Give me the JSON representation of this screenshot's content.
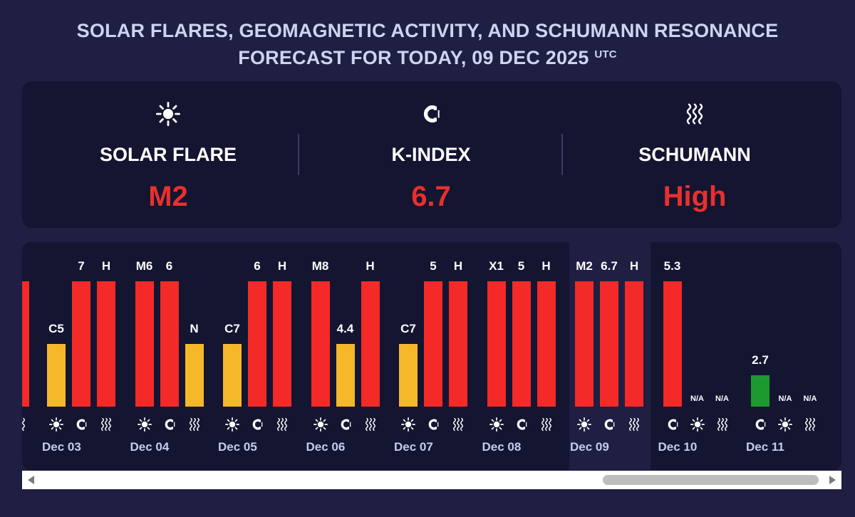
{
  "header": {
    "title_line1": "SOLAR FLARES, GEOMAGNETIC ACTIVITY, AND SCHUMANN RESONANCE",
    "title_line2": "FORECAST FOR TODAY, 09 DEC 2025",
    "title_sup": "UTC"
  },
  "summary": [
    {
      "icon": "sun-icon",
      "label": "SOLAR FLARE",
      "value": "M2"
    },
    {
      "icon": "magnet-icon",
      "label": "K-INDEX",
      "value": "6.7"
    },
    {
      "icon": "waves-icon",
      "label": "SCHUMANN",
      "value": "High"
    }
  ],
  "colors": {
    "high": "#f32a27",
    "medium": "#f5b82a",
    "low": "#1c9a2f",
    "value_text": "#e8302c"
  },
  "timeline": {
    "partial_day": {
      "bars": [
        {
          "label": "",
          "level": 1.0,
          "color": "red",
          "icon": "waves-icon"
        }
      ]
    },
    "days": [
      {
        "date": "Dec 03",
        "bars": [
          {
            "label": "C5",
            "level": 0.5,
            "color": "amber",
            "icon": "sun-icon"
          },
          {
            "label": "7",
            "level": 1.0,
            "color": "red",
            "icon": "magnet-icon"
          },
          {
            "label": "H",
            "level": 1.0,
            "color": "red",
            "icon": "waves-icon"
          }
        ]
      },
      {
        "date": "Dec 04",
        "bars": [
          {
            "label": "M6",
            "level": 1.0,
            "color": "red",
            "icon": "sun-icon"
          },
          {
            "label": "6",
            "level": 1.0,
            "color": "red",
            "icon": "magnet-icon"
          },
          {
            "label": "N",
            "level": 0.5,
            "color": "amber",
            "icon": "waves-icon"
          }
        ]
      },
      {
        "date": "Dec 05",
        "bars": [
          {
            "label": "C7",
            "level": 0.5,
            "color": "amber",
            "icon": "sun-icon"
          },
          {
            "label": "6",
            "level": 1.0,
            "color": "red",
            "icon": "magnet-icon"
          },
          {
            "label": "H",
            "level": 1.0,
            "color": "red",
            "icon": "waves-icon"
          }
        ]
      },
      {
        "date": "Dec 06",
        "bars": [
          {
            "label": "M8",
            "level": 1.0,
            "color": "red",
            "icon": "sun-icon"
          },
          {
            "label": "4.4",
            "level": 0.5,
            "color": "amber",
            "icon": "magnet-icon"
          },
          {
            "label": "H",
            "level": 1.0,
            "color": "red",
            "icon": "waves-icon"
          }
        ]
      },
      {
        "date": "Dec 07",
        "bars": [
          {
            "label": "C7",
            "level": 0.5,
            "color": "amber",
            "icon": "sun-icon"
          },
          {
            "label": "5",
            "level": 1.0,
            "color": "red",
            "icon": "magnet-icon"
          },
          {
            "label": "H",
            "level": 1.0,
            "color": "red",
            "icon": "waves-icon"
          }
        ]
      },
      {
        "date": "Dec 08",
        "bars": [
          {
            "label": "X1",
            "level": 1.0,
            "color": "red",
            "icon": "sun-icon"
          },
          {
            "label": "5",
            "level": 1.0,
            "color": "red",
            "icon": "magnet-icon"
          },
          {
            "label": "H",
            "level": 1.0,
            "color": "red",
            "icon": "waves-icon"
          }
        ]
      },
      {
        "date": "Dec 09",
        "today": true,
        "bars": [
          {
            "label": "M2",
            "level": 1.0,
            "color": "red",
            "icon": "sun-icon"
          },
          {
            "label": "6.7",
            "level": 1.0,
            "color": "red",
            "icon": "magnet-icon"
          },
          {
            "label": "H",
            "level": 1.0,
            "color": "red",
            "icon": "waves-icon"
          }
        ]
      },
      {
        "date": "Dec 10",
        "bars": [
          {
            "label": "5.3",
            "level": 1.0,
            "color": "red",
            "icon": "magnet-icon"
          },
          {
            "label": "N/A",
            "level": 0,
            "color": "none",
            "icon": "sun-icon"
          },
          {
            "label": "N/A",
            "level": 0,
            "color": "none",
            "icon": "waves-icon"
          }
        ]
      },
      {
        "date": "Dec 11",
        "bars": [
          {
            "label": "2.7",
            "level": 0.25,
            "color": "green",
            "icon": "magnet-icon"
          },
          {
            "label": "N/A",
            "level": 0,
            "color": "none",
            "icon": "sun-icon"
          },
          {
            "label": "N/A",
            "level": 0,
            "color": "none",
            "icon": "waves-icon"
          }
        ]
      }
    ]
  },
  "scrollbar": {
    "position": 0.94
  }
}
